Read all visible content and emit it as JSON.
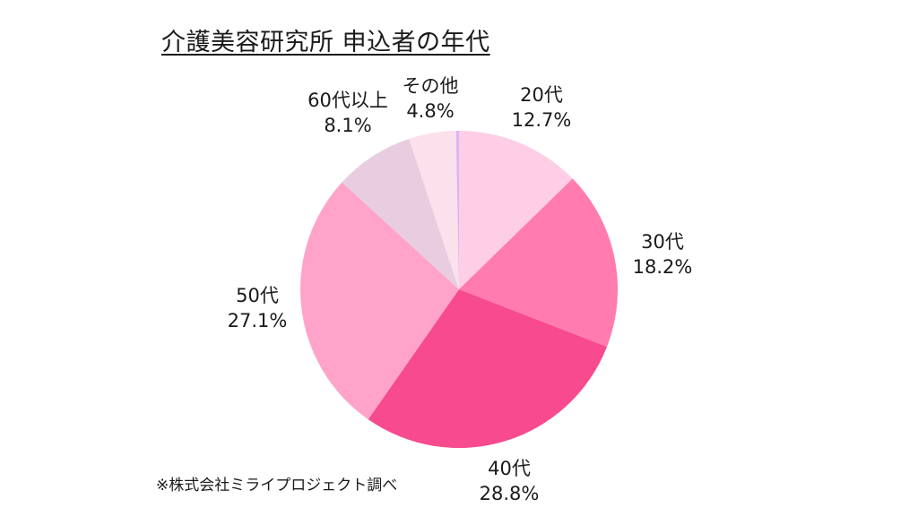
{
  "title": "介護美容研究所 申込者の年代",
  "source_note": "※株式会社ミライプロジェクト調べ",
  "chart_data": {
    "type": "pie",
    "title": "介護美容研究所 申込者の年代",
    "start_angle": "12 o'clock, clockwise",
    "categories": [
      "20代",
      "30代",
      "40代",
      "50代",
      "60代以上",
      "その他",
      ""
    ],
    "values": [
      12.7,
      18.2,
      28.8,
      27.1,
      8.1,
      4.8,
      0.3
    ],
    "unit": "%",
    "colors": [
      "#FECDE6",
      "#FF7BB0",
      "#F74A8F",
      "#FFA3CA",
      "#E8CDE0",
      "#FAE1EC",
      "#DCB4F8"
    ],
    "labels": [
      {
        "name": "20代",
        "pct": "12.7%"
      },
      {
        "name": "30代",
        "pct": "18.2%"
      },
      {
        "name": "40代",
        "pct": "28.8%"
      },
      {
        "name": "50代",
        "pct": "27.1%"
      },
      {
        "name": "60代以上",
        "pct": "8.1%"
      },
      {
        "name": "その他",
        "pct": "4.8%"
      }
    ],
    "legend": "none (direct labels)"
  }
}
